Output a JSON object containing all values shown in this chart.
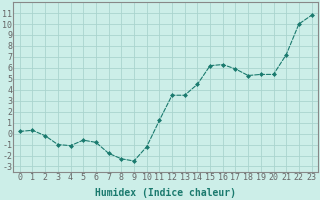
{
  "x": [
    0,
    1,
    2,
    3,
    4,
    5,
    6,
    7,
    8,
    9,
    10,
    11,
    12,
    13,
    14,
    15,
    16,
    17,
    18,
    19,
    20,
    21,
    22,
    23
  ],
  "y": [
    0.2,
    0.3,
    -0.2,
    -1.0,
    -1.1,
    -0.6,
    -0.8,
    -1.8,
    -2.3,
    -2.5,
    -1.2,
    1.2,
    3.5,
    3.5,
    4.5,
    6.2,
    6.3,
    5.9,
    5.3,
    5.4,
    5.4,
    7.2,
    10.0,
    10.8
  ],
  "line_color": "#1a7a6e",
  "marker": "D",
  "marker_size": 2.0,
  "bg_color": "#cceee8",
  "grid_color": "#aad4ce",
  "xlabel": "Humidex (Indice chaleur)",
  "xlim": [
    -0.5,
    23.5
  ],
  "ylim": [
    -3.5,
    12.0
  ],
  "yticks": [
    -3,
    -2,
    -1,
    0,
    1,
    2,
    3,
    4,
    5,
    6,
    7,
    8,
    9,
    10,
    11
  ],
  "xticks": [
    0,
    1,
    2,
    3,
    4,
    5,
    6,
    7,
    8,
    9,
    10,
    11,
    12,
    13,
    14,
    15,
    16,
    17,
    18,
    19,
    20,
    21,
    22,
    23
  ],
  "tick_fontsize": 6.0,
  "xlabel_fontsize": 7.0,
  "axis_color": "#666666",
  "spine_color": "#888888"
}
